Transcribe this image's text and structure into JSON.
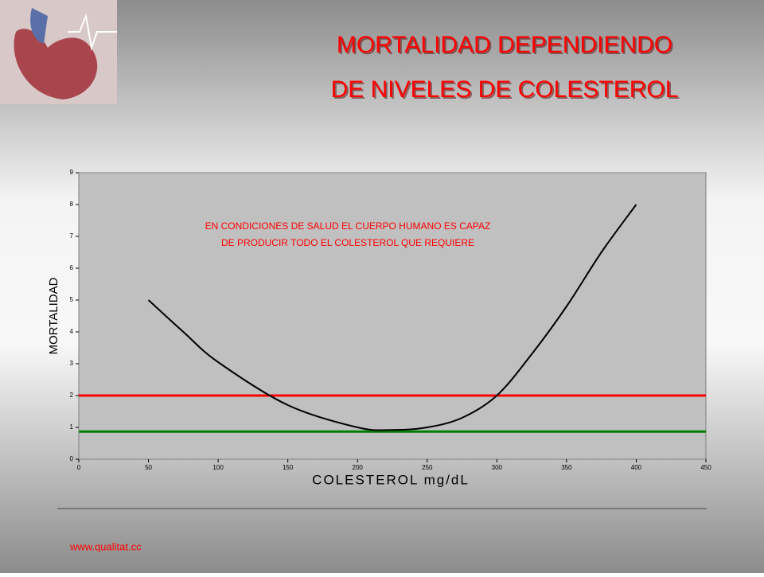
{
  "chart_data": {
    "type": "line",
    "title": [
      "MORTALIDAD DEPENDIENDO",
      "DE NIVELES DE COLESTEROL"
    ],
    "annotation": [
      "EN CONDICIONES DE SALUD EL CUERPO HUMANO ES CAPAZ",
      "DE PRODUCIR  TODO EL COLESTEROL QUE REQUIERE"
    ],
    "x_label": "COLESTEROL mg/dL",
    "y_label": "MORTALIDAD",
    "series": [
      {
        "color": "#000000",
        "x": [
          50,
          75,
          100,
          150,
          200,
          225,
          250,
          275,
          300,
          325,
          350,
          375,
          400
        ],
        "values": [
          5,
          4,
          3.05,
          1.7,
          1,
          0.92,
          1,
          1.3,
          2,
          3.3,
          4.8,
          6.5,
          8
        ]
      }
    ],
    "reference_lines": [
      {
        "value": 2,
        "color": "#ff0000"
      },
      {
        "value": 0.87,
        "color": "#008000"
      }
    ],
    "xlim": [
      0,
      450
    ],
    "xticks": [
      0,
      50,
      100,
      150,
      200,
      250,
      300,
      350,
      400,
      450
    ],
    "ylim": [
      0,
      9
    ],
    "yticks": [
      0,
      1,
      2,
      3,
      4,
      5,
      6,
      7,
      8,
      9
    ],
    "plot_color": "#c0c0c0"
  },
  "footer": "www.qualitat.cc"
}
